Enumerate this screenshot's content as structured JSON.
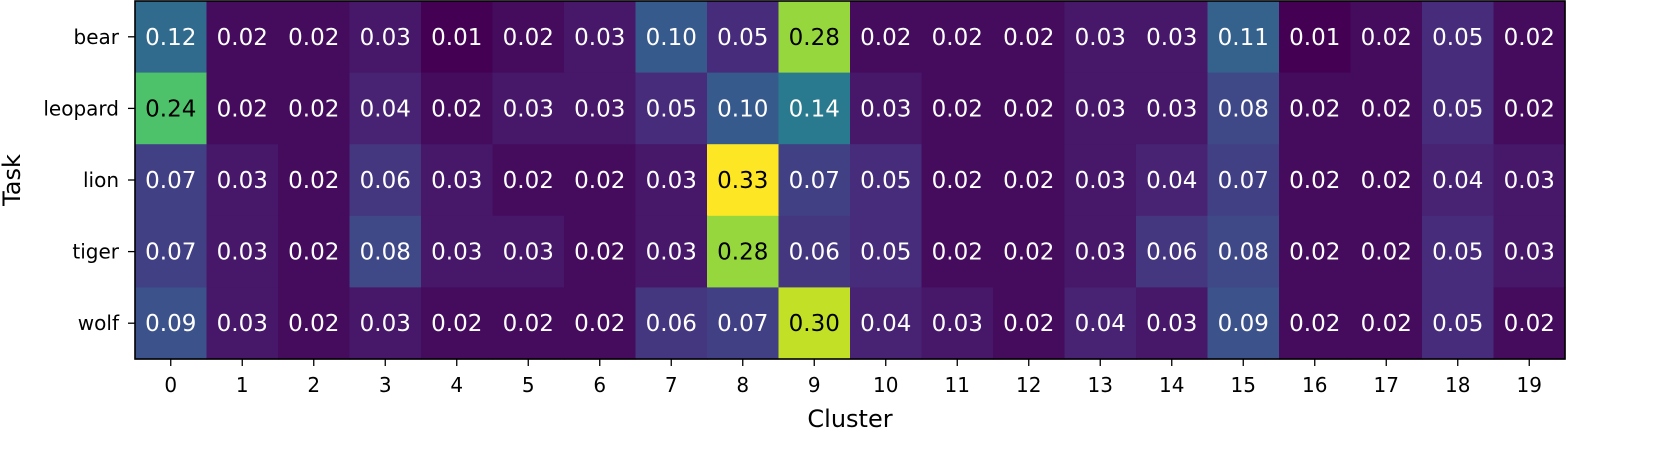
{
  "chart_data": {
    "type": "heatmap",
    "xlabel": "Cluster",
    "ylabel": "Task",
    "rows": [
      "bear",
      "leopard",
      "lion",
      "tiger",
      "wolf"
    ],
    "columns": [
      "0",
      "1",
      "2",
      "3",
      "4",
      "5",
      "6",
      "7",
      "8",
      "9",
      "10",
      "11",
      "12",
      "13",
      "14",
      "15",
      "16",
      "17",
      "18",
      "19"
    ],
    "values": [
      [
        0.12,
        0.02,
        0.02,
        0.03,
        0.01,
        0.02,
        0.03,
        0.1,
        0.05,
        0.28,
        0.02,
        0.02,
        0.02,
        0.03,
        0.03,
        0.11,
        0.01,
        0.02,
        0.05,
        0.02
      ],
      [
        0.24,
        0.02,
        0.02,
        0.04,
        0.02,
        0.03,
        0.03,
        0.05,
        0.1,
        0.14,
        0.03,
        0.02,
        0.02,
        0.03,
        0.03,
        0.08,
        0.02,
        0.02,
        0.05,
        0.02
      ],
      [
        0.07,
        0.03,
        0.02,
        0.06,
        0.03,
        0.02,
        0.02,
        0.03,
        0.33,
        0.07,
        0.05,
        0.02,
        0.02,
        0.03,
        0.04,
        0.07,
        0.02,
        0.02,
        0.04,
        0.03
      ],
      [
        0.07,
        0.03,
        0.02,
        0.08,
        0.03,
        0.03,
        0.02,
        0.03,
        0.28,
        0.06,
        0.05,
        0.02,
        0.02,
        0.03,
        0.06,
        0.08,
        0.02,
        0.02,
        0.05,
        0.03
      ],
      [
        0.09,
        0.03,
        0.02,
        0.03,
        0.02,
        0.02,
        0.02,
        0.06,
        0.07,
        0.3,
        0.04,
        0.03,
        0.02,
        0.04,
        0.03,
        0.09,
        0.02,
        0.02,
        0.05,
        0.02
      ]
    ],
    "colormap": "viridis",
    "value_range": [
      0.01,
      0.33
    ],
    "grid": false
  }
}
